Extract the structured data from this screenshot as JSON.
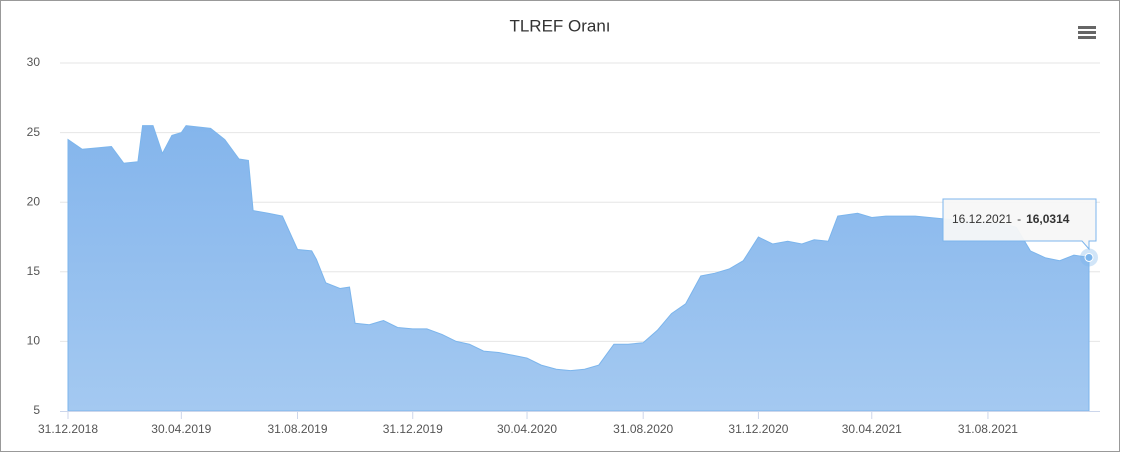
{
  "chart_data": {
    "type": "area",
    "title": "TLREF Oranı",
    "x": [
      "31.12.2018",
      "15.01.2019",
      "31.01.2019",
      "15.02.2019",
      "28.02.2019",
      "15.03.2019",
      "20.03.2019",
      "31.03.2019",
      "10.04.2019",
      "20.04.2019",
      "30.04.2019",
      "05.05.2019",
      "31.05.2019",
      "15.06.2019",
      "30.06.2019",
      "10.07.2019",
      "15.07.2019",
      "31.07.2019",
      "15.08.2019",
      "31.08.2019",
      "15.09.2019",
      "20.09.2019",
      "30.09.2019",
      "15.10.2019",
      "25.10.2019",
      "31.10.2019",
      "15.11.2019",
      "30.11.2019",
      "15.12.2019",
      "31.12.2019",
      "15.01.2020",
      "31.01.2020",
      "15.02.2020",
      "29.02.2020",
      "15.03.2020",
      "31.03.2020",
      "15.04.2020",
      "30.04.2020",
      "15.05.2020",
      "31.05.2020",
      "15.06.2020",
      "30.06.2020",
      "15.07.2020",
      "31.07.2020",
      "15.08.2020",
      "31.08.2020",
      "15.09.2020",
      "30.09.2020",
      "15.10.2020",
      "31.10.2020",
      "15.11.2020",
      "30.11.2020",
      "15.12.2020",
      "31.12.2020",
      "15.01.2021",
      "31.01.2021",
      "15.02.2021",
      "28.02.2021",
      "15.03.2021",
      "25.03.2021",
      "15.04.2021",
      "30.04.2021",
      "15.05.2021",
      "31.05.2021",
      "15.06.2021",
      "30.06.2021",
      "15.07.2021",
      "31.07.2021",
      "15.08.2021",
      "31.08.2021",
      "15.09.2021",
      "30.09.2021",
      "15.10.2021",
      "31.10.2021",
      "15.11.2021",
      "30.11.2021",
      "16.12.2021"
    ],
    "values": [
      24.5,
      23.8,
      23.9,
      24.0,
      22.8,
      22.9,
      25.5,
      25.5,
      23.5,
      24.8,
      25.0,
      25.5,
      25.3,
      24.5,
      23.1,
      23.0,
      19.4,
      19.2,
      19.0,
      16.6,
      16.5,
      15.9,
      14.2,
      13.8,
      13.9,
      11.3,
      11.2,
      11.5,
      11.0,
      10.9,
      10.9,
      10.5,
      10.0,
      9.8,
      9.3,
      9.2,
      9.0,
      8.8,
      8.3,
      8.0,
      7.9,
      8.0,
      8.3,
      9.8,
      9.8,
      9.9,
      10.8,
      12.0,
      12.7,
      14.7,
      14.9,
      15.2,
      15.8,
      17.5,
      17.0,
      17.2,
      17.0,
      17.3,
      17.2,
      19.0,
      19.2,
      18.9,
      19.0,
      19.0,
      19.0,
      18.9,
      18.8,
      18.7,
      18.6,
      18.6,
      18.5,
      18.2,
      16.5,
      16.0,
      15.8,
      16.2,
      16.0314
    ],
    "color": "#7cb5ec",
    "xlim": [
      "31.12.2018",
      "16.12.2021"
    ],
    "xticks": [
      "31.12.2018",
      "30.04.2019",
      "31.08.2019",
      "31.12.2019",
      "30.04.2020",
      "31.08.2020",
      "31.12.2020",
      "30.04.2021",
      "31.08.2021"
    ],
    "ylim": [
      5,
      30
    ],
    "yticks": [
      5,
      10,
      15,
      20,
      25,
      30
    ],
    "grid": true,
    "tooltip": {
      "x": "16.12.2021",
      "separator": "-",
      "value": 16.0314,
      "label": "16,0314"
    }
  }
}
